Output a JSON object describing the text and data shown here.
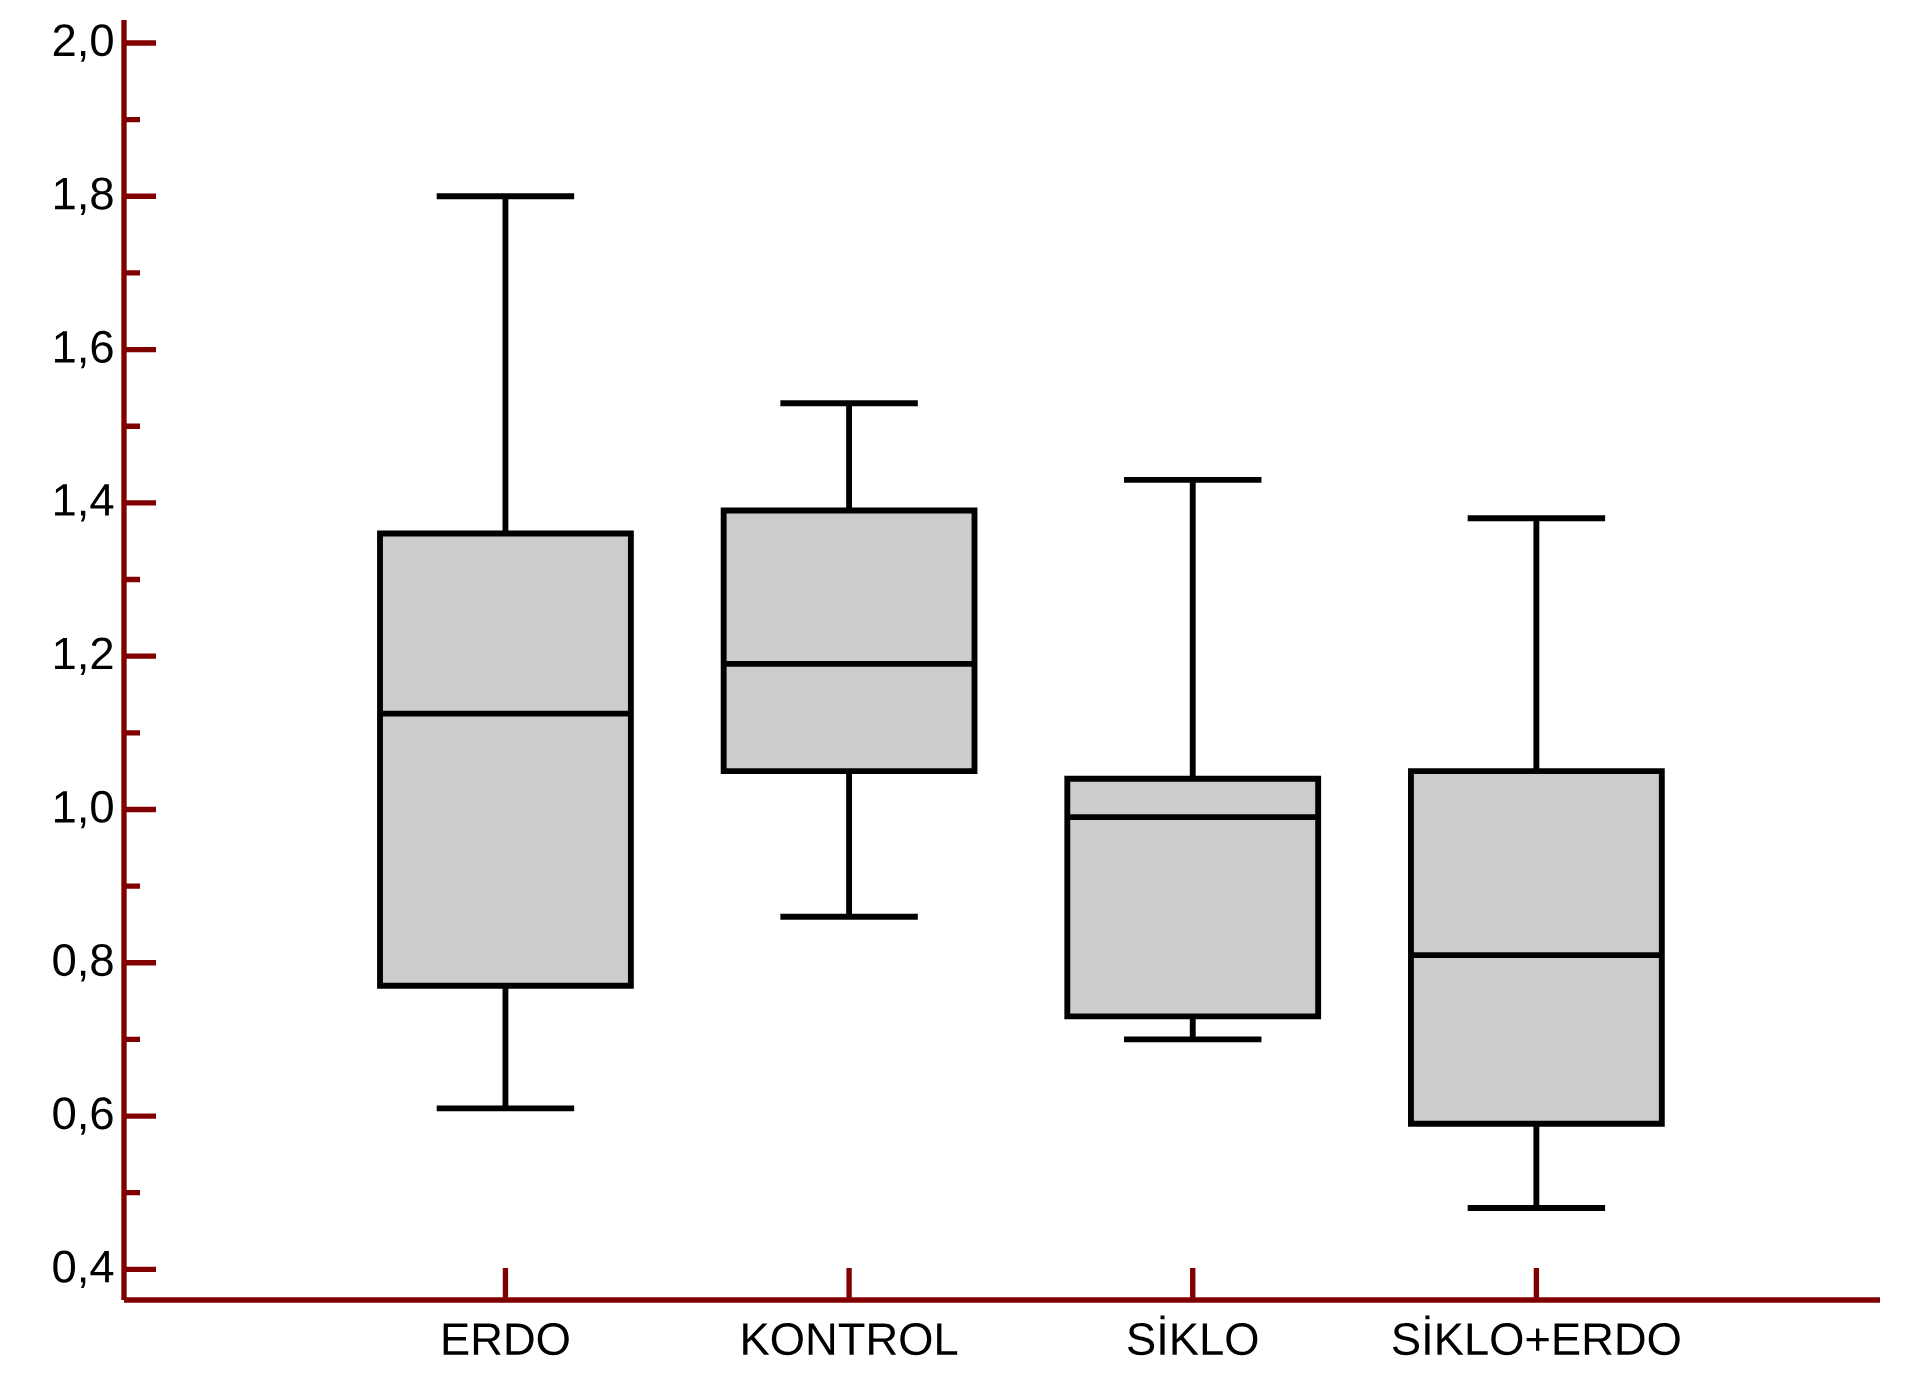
{
  "chart_data": {
    "type": "box",
    "categories": [
      "ERDO",
      "KONTROL",
      "SİKLO",
      "SİKLO+ERDO"
    ],
    "boxes": [
      {
        "low": 0.61,
        "q1": 0.77,
        "median": 1.125,
        "q3": 1.36,
        "high": 1.8
      },
      {
        "low": 0.86,
        "q1": 1.05,
        "median": 1.19,
        "q3": 1.39,
        "high": 1.53
      },
      {
        "low": 0.7,
        "q1": 0.73,
        "median": 0.99,
        "q3": 1.04,
        "high": 1.43
      },
      {
        "low": 0.48,
        "q1": 0.59,
        "median": 0.81,
        "q3": 1.05,
        "high": 1.38
      }
    ],
    "color": "#cccccc",
    "ylim": [
      0.36,
      2.03
    ],
    "yticks": [
      {
        "value": 0.4,
        "label": "0,4"
      },
      {
        "value": 0.6,
        "label": "0,6"
      },
      {
        "value": 0.8,
        "label": "0,8"
      },
      {
        "value": 1.0,
        "label": "1,0"
      },
      {
        "value": 1.2,
        "label": "1,2"
      },
      {
        "value": 1.4,
        "label": "1,4"
      },
      {
        "value": 1.6,
        "label": "1,6"
      },
      {
        "value": 1.8,
        "label": "1,8"
      },
      {
        "value": 2.0,
        "label": "2,0"
      }
    ]
  }
}
